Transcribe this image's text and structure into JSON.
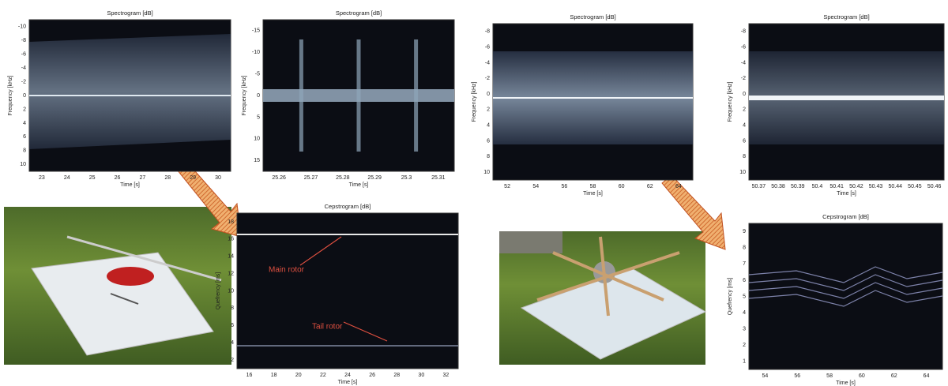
{
  "panels": [
    {
      "title": "Spectrogram [dB]",
      "xlabel": "Time [s]",
      "ylabel": "Frequency [kHz]",
      "xticks": [
        "23",
        "24",
        "25",
        "26",
        "27",
        "28",
        "29",
        "30"
      ],
      "yticks": [
        "-10",
        "-8",
        "-6",
        "-4",
        "-2",
        "0",
        "2",
        "4",
        "6",
        "8",
        "10"
      ]
    },
    {
      "title": "Spectrogram [dB]",
      "xlabel": "Time [s]",
      "ylabel": "Frequency [kHz]",
      "xticks": [
        "25.26",
        "25.27",
        "25.28",
        "25.29",
        "25.3",
        "25.31"
      ],
      "yticks": [
        "-15",
        "-10",
        "-5",
        "0",
        "5",
        "10",
        "15"
      ]
    },
    {
      "title": "Spectrogram [dB]",
      "xlabel": "Time [s]",
      "ylabel": "Frequency [kHz]",
      "xticks": [
        "52",
        "54",
        "56",
        "58",
        "60",
        "62",
        "64"
      ],
      "yticks": [
        "-8",
        "-6",
        "-4",
        "-2",
        "0",
        "2",
        "4",
        "6",
        "8",
        "10"
      ]
    },
    {
      "title": "Spectrogram [dB]",
      "xlabel": "Time [s]",
      "ylabel": "Frequency [kHz]",
      "xticks": [
        "50.37",
        "50.38",
        "50.39",
        "50.4",
        "50.41",
        "50.42",
        "50.43",
        "50.44",
        "50.45",
        "50.46"
      ],
      "yticks": [
        "-8",
        "-6",
        "-4",
        "-2",
        "0",
        "2",
        "4",
        "6",
        "8",
        "10"
      ]
    },
    {
      "title": "Cepstrogram [dB]",
      "xlabel": "Time [s]",
      "ylabel": "Quefrency [ms]",
      "xticks": [
        "16",
        "18",
        "20",
        "22",
        "24",
        "26",
        "28",
        "30",
        "32"
      ],
      "yticks": [
        "18",
        "16",
        "14",
        "12",
        "10",
        "8",
        "6",
        "4",
        "2"
      ],
      "annotations": [
        "Main rotor",
        "Tail rotor"
      ]
    },
    {
      "title": "Cepstrogram [dB]",
      "xlabel": "Time [s]",
      "ylabel": "Quefrency [ms]",
      "xticks": [
        "54",
        "56",
        "58",
        "60",
        "62",
        "64"
      ],
      "yticks": [
        "9",
        "8",
        "7",
        "6",
        "5",
        "4",
        "3",
        "2",
        "1"
      ]
    }
  ]
}
